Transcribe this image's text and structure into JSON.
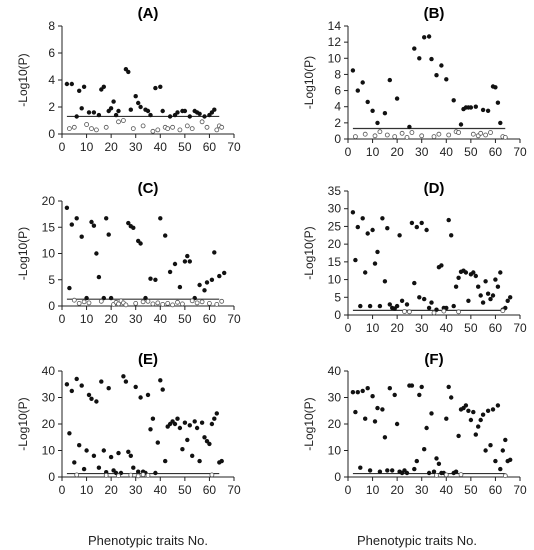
{
  "figure": {
    "bottom_xlabel_left": "Phenotypic traits No.",
    "bottom_xlabel_right": "Phenotypic traits No."
  },
  "colors": {
    "point": "#111111",
    "threshold": "#333333",
    "axis": "#222222"
  },
  "chart_data": [
    {
      "type": "scatter",
      "title": "(A)",
      "xlabel": "",
      "ylabel": "-Log10(P)",
      "xlim": [
        0,
        70
      ],
      "ylim": [
        0,
        8
      ],
      "xticks": [
        0,
        10,
        20,
        30,
        40,
        50,
        60,
        70
      ],
      "yticks": [
        0,
        2,
        4,
        6,
        8
      ],
      "threshold": 1.3,
      "grid": false,
      "series": [
        {
          "marker": "filled",
          "x": [
            2,
            4,
            6,
            7,
            8,
            9,
            11,
            13,
            15,
            16,
            17,
            19,
            20,
            21,
            22,
            23,
            26,
            27,
            28,
            30,
            31,
            32,
            34,
            35,
            36,
            38,
            40,
            41,
            44,
            46,
            47,
            49,
            50,
            52,
            54,
            55,
            56,
            58,
            60,
            61,
            62
          ],
          "y": [
            3.7,
            3.7,
            1.3,
            3.2,
            1.9,
            3.5,
            1.6,
            1.6,
            1.4,
            3.3,
            3.5,
            1.7,
            1.9,
            2.4,
            1.4,
            1.7,
            4.8,
            4.6,
            1.8,
            2.8,
            2.3,
            2.0,
            1.8,
            1.7,
            1.4,
            3.4,
            3.5,
            1.7,
            1.3,
            1.4,
            1.6,
            1.7,
            1.7,
            1.3,
            1.7,
            1.6,
            1.5,
            1.3,
            1.4,
            1.6,
            1.8
          ]
        },
        {
          "marker": "open",
          "x": [
            3,
            5,
            10,
            12,
            14,
            18,
            23,
            25,
            29,
            33,
            37,
            39,
            42,
            43,
            45,
            48,
            51,
            53,
            57,
            59,
            63,
            64,
            65
          ],
          "y": [
            0.4,
            0.5,
            0.7,
            0.4,
            0.3,
            0.5,
            0.9,
            1.0,
            0.4,
            0.6,
            0.2,
            0.3,
            0.5,
            0.4,
            0.5,
            0.3,
            0.6,
            0.4,
            0.9,
            0.5,
            0.3,
            0.6,
            0.5
          ]
        }
      ]
    },
    {
      "type": "scatter",
      "title": "(B)",
      "xlabel": "",
      "ylabel": "-Log10(P)",
      "xlim": [
        0,
        70
      ],
      "ylim": [
        0,
        14
      ],
      "xticks": [
        0,
        10,
        20,
        30,
        40,
        50,
        60,
        70
      ],
      "yticks": [
        0,
        2,
        4,
        6,
        8,
        10,
        12,
        14
      ],
      "threshold": 1.3,
      "grid": false,
      "series": [
        {
          "marker": "filled",
          "x": [
            2,
            4,
            6,
            8,
            10,
            12,
            15,
            17,
            20,
            25,
            27,
            29,
            31,
            33,
            34,
            36,
            38,
            40,
            43,
            46,
            47,
            48,
            49,
            50,
            52,
            55,
            57,
            59,
            60,
            61,
            62
          ],
          "y": [
            8.5,
            6.0,
            7.0,
            4.6,
            3.5,
            2.0,
            3.2,
            7.3,
            5.0,
            1.5,
            11.2,
            10.0,
            12.6,
            12.7,
            9.9,
            7.9,
            9.1,
            7.4,
            4.8,
            1.8,
            3.7,
            3.9,
            3.9,
            3.9,
            4.0,
            3.6,
            3.5,
            6.5,
            6.4,
            4.5,
            2.0
          ]
        },
        {
          "marker": "open",
          "x": [
            3,
            7,
            11,
            13,
            16,
            19,
            22,
            24,
            26,
            30,
            35,
            37,
            41,
            44,
            45,
            51,
            53,
            54,
            56,
            58,
            63,
            64
          ],
          "y": [
            0.3,
            0.6,
            0.4,
            0.9,
            0.5,
            0.3,
            0.7,
            0.2,
            0.8,
            0.4,
            0.3,
            0.6,
            0.5,
            0.9,
            0.8,
            0.6,
            0.4,
            0.7,
            0.5,
            0.8,
            0.3,
            0.2
          ]
        }
      ]
    },
    {
      "type": "scatter",
      "title": "(C)",
      "xlabel": "",
      "ylabel": "-Log10(P)",
      "xlim": [
        0,
        70
      ],
      "ylim": [
        0,
        20
      ],
      "xticks": [
        0,
        10,
        20,
        30,
        40,
        50,
        60,
        70
      ],
      "yticks": [
        0,
        5,
        10,
        15,
        20
      ],
      "threshold": 1.3,
      "grid": false,
      "series": [
        {
          "marker": "filled",
          "x": [
            2,
            3,
            4,
            6,
            8,
            10,
            12,
            13,
            14,
            15,
            17,
            18,
            19,
            20,
            27,
            28,
            29,
            31,
            32,
            34,
            36,
            38,
            40,
            42,
            44,
            46,
            48,
            50,
            51,
            52,
            54,
            56,
            58,
            59,
            61,
            62,
            64,
            66
          ],
          "y": [
            18.7,
            3.4,
            15.5,
            16.7,
            13.2,
            1.5,
            16.0,
            15.3,
            10.0,
            5.5,
            1.5,
            16.7,
            13.6,
            1.5,
            15.8,
            15.2,
            14.9,
            12.4,
            11.9,
            1.5,
            5.2,
            5.0,
            16.7,
            13.4,
            6.5,
            8.0,
            3.6,
            8.5,
            9.5,
            8.5,
            1.5,
            4.0,
            3.0,
            4.5,
            5.0,
            10.2,
            5.7,
            6.3
          ]
        },
        {
          "marker": "open",
          "x": [
            5,
            7,
            9,
            11,
            16,
            21,
            22,
            23,
            24,
            25,
            26,
            30,
            33,
            35,
            37,
            39,
            41,
            43,
            45,
            47,
            49,
            53,
            55,
            57,
            60,
            63,
            65
          ],
          "y": [
            1.1,
            0.5,
            0.8,
            0.6,
            0.9,
            0.3,
            0.7,
            0.4,
            1.0,
            0.6,
            0.2,
            0.5,
            0.8,
            0.9,
            0.4,
            0.6,
            0.3,
            0.5,
            0.2,
            0.7,
            0.4,
            1.0,
            0.6,
            0.8,
            0.5,
            0.3,
            0.9
          ]
        }
      ]
    },
    {
      "type": "scatter",
      "title": "(D)",
      "xlabel": "",
      "ylabel": "-Log10(P)",
      "xlim": [
        0,
        70
      ],
      "ylim": [
        0,
        35
      ],
      "xticks": [
        0,
        10,
        20,
        30,
        40,
        50,
        60,
        70
      ],
      "yticks": [
        0,
        5,
        10,
        15,
        20,
        25,
        30,
        35
      ],
      "threshold": 1.3,
      "grid": false,
      "series": [
        {
          "marker": "filled",
          "x": [
            2,
            3,
            4,
            5,
            6,
            7,
            8,
            9,
            10,
            11,
            12,
            13,
            14,
            15,
            16,
            17,
            18,
            19,
            20,
            21,
            22,
            24,
            26,
            27,
            28,
            29,
            30,
            31,
            32,
            33,
            34,
            36,
            37,
            38,
            39,
            40,
            41,
            42,
            43,
            44,
            45,
            46,
            47,
            48,
            49,
            50,
            51,
            52,
            53,
            54,
            55,
            56,
            57,
            58,
            59,
            60,
            61,
            62,
            63,
            64,
            65,
            66
          ],
          "y": [
            29.0,
            15.5,
            24.8,
            2.5,
            27.3,
            12.0,
            23.0,
            2.5,
            24.0,
            14.5,
            17.8,
            2.5,
            27.3,
            9.5,
            24.5,
            3.0,
            2.0,
            1.8,
            2.5,
            22.5,
            4.0,
            3.0,
            26.0,
            9.0,
            24.8,
            5.0,
            26.0,
            4.5,
            24.0,
            2.0,
            3.5,
            1.5,
            13.5,
            14.0,
            2.0,
            2.0,
            26.8,
            22.5,
            2.5,
            8.0,
            10.5,
            12.2,
            12.5,
            12.0,
            4.0,
            11.5,
            12.0,
            11.0,
            8.0,
            5.5,
            3.5,
            9.5,
            6.0,
            4.5,
            5.5,
            10.0,
            8.0,
            12.0,
            1.5,
            2.0,
            4.0,
            5.0
          ]
        },
        {
          "marker": "open",
          "x": [
            23,
            25,
            35,
            39,
            45,
            63
          ],
          "y": [
            1.0,
            0.9,
            0.6,
            1.1,
            0.9,
            1.2
          ]
        }
      ]
    },
    {
      "type": "scatter",
      "title": "(E)",
      "xlabel": "Phenotypic traits No.",
      "ylabel": "-Log10(P)",
      "xlim": [
        0,
        70
      ],
      "ylim": [
        0,
        40
      ],
      "xticks": [
        0,
        10,
        20,
        30,
        40,
        50,
        60,
        70
      ],
      "yticks": [
        0,
        10,
        20,
        30,
        40
      ],
      "threshold": 1.3,
      "grid": false,
      "series": [
        {
          "marker": "filled",
          "x": [
            2,
            3,
            4,
            5,
            6,
            7,
            8,
            9,
            10,
            11,
            12,
            13,
            14,
            15,
            16,
            17,
            18,
            19,
            20,
            21,
            22,
            23,
            24,
            25,
            26,
            27,
            28,
            29,
            30,
            31,
            32,
            33,
            34,
            35,
            36,
            37,
            38,
            39,
            40,
            41,
            42,
            43,
            44,
            45,
            46,
            47,
            48,
            49,
            50,
            51,
            52,
            53,
            54,
            55,
            56,
            57,
            58,
            59,
            60,
            61,
            62,
            63,
            64,
            65
          ],
          "y": [
            35.0,
            16.5,
            32.5,
            5.5,
            37.0,
            12.0,
            34.5,
            3.0,
            10.0,
            31.0,
            29.5,
            8.0,
            28.5,
            3.5,
            36.0,
            10.0,
            1.8,
            33.5,
            7.5,
            2.5,
            1.5,
            9.0,
            1.5,
            38.0,
            36.0,
            9.5,
            8.0,
            3.5,
            34.0,
            2.0,
            30.0,
            2.0,
            1.5,
            31.0,
            18.0,
            22.0,
            1.5,
            13.0,
            36.5,
            33.0,
            6.0,
            19.0,
            20.0,
            21.0,
            20.0,
            22.0,
            18.5,
            10.5,
            20.5,
            14.0,
            19.5,
            8.0,
            21.0,
            18.5,
            6.0,
            20.5,
            15.0,
            13.5,
            12.5,
            20.0,
            22.0,
            24.0,
            5.5,
            6.0
          ]
        },
        {
          "marker": "open",
          "x": [
            6,
            18,
            23,
            28,
            31,
            33,
            35,
            61
          ],
          "y": [
            0.8,
            0.6,
            0.5,
            0.7,
            0.4,
            0.9,
            0.6,
            0.8
          ]
        }
      ]
    },
    {
      "type": "scatter",
      "title": "(F)",
      "xlabel": "Phenotypic traits No.",
      "ylabel": "-Log10(P)",
      "xlim": [
        0,
        70
      ],
      "ylim": [
        0,
        40
      ],
      "xticks": [
        0,
        10,
        20,
        30,
        40,
        50,
        60,
        70
      ],
      "yticks": [
        0,
        10,
        20,
        30,
        40
      ],
      "threshold": 1.3,
      "grid": false,
      "series": [
        {
          "marker": "filled",
          "x": [
            2,
            3,
            4,
            5,
            6,
            7,
            8,
            9,
            10,
            11,
            12,
            13,
            14,
            15,
            16,
            17,
            18,
            19,
            20,
            21,
            22,
            23,
            24,
            25,
            26,
            27,
            28,
            29,
            30,
            31,
            32,
            33,
            34,
            35,
            36,
            37,
            38,
            39,
            40,
            41,
            42,
            43,
            44,
            45,
            46,
            47,
            48,
            49,
            50,
            51,
            52,
            53,
            54,
            55,
            56,
            57,
            58,
            59,
            60,
            61,
            62,
            63,
            64,
            65,
            66
          ],
          "y": [
            32.0,
            24.5,
            32.0,
            3.5,
            32.5,
            22.0,
            33.5,
            2.5,
            30.5,
            21.0,
            26.0,
            2.0,
            25.5,
            15.0,
            2.5,
            33.5,
            2.5,
            31.0,
            20.0,
            2.0,
            1.5,
            2.5,
            1.5,
            34.5,
            34.5,
            3.0,
            6.0,
            31.0,
            34.0,
            10.5,
            18.5,
            1.5,
            24.0,
            2.0,
            7.0,
            5.0,
            1.5,
            1.5,
            22.0,
            34.0,
            30.0,
            1.5,
            2.0,
            15.5,
            25.5,
            26.0,
            27.0,
            25.0,
            21.5,
            24.5,
            16.0,
            19.0,
            21.5,
            23.5,
            10.0,
            25.0,
            12.0,
            25.5,
            6.0,
            27.0,
            3.0,
            10.0,
            14.0,
            6.0,
            6.5
          ]
        },
        {
          "marker": "open",
          "x": [
            36,
            40,
            46,
            64
          ],
          "y": [
            0.6,
            0.8,
            0.9,
            0.5
          ]
        }
      ]
    }
  ]
}
